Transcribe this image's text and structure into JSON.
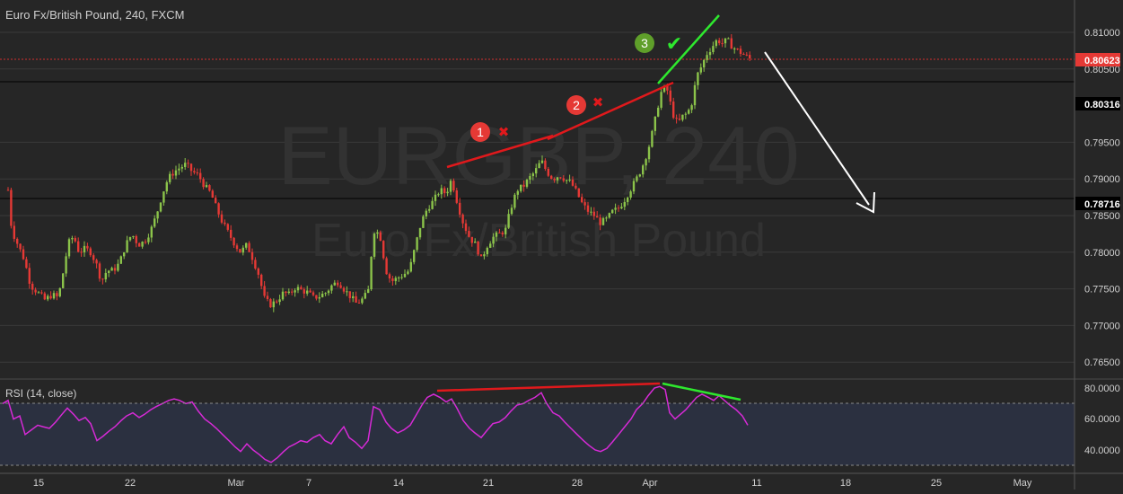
{
  "colors": {
    "background": "#262626",
    "rsi_band": "#2b3040",
    "grid": "#3a3a3a",
    "up": "#8bc34a",
    "down": "#e53935",
    "rsi_line": "#d62ad6",
    "price_line": "#d32f2f",
    "annotation_red": "#e0191c",
    "annotation_green": "#2ee82e",
    "arrow": "#ffffff",
    "text": "#d0d0d0",
    "watermark": "#323232"
  },
  "header": {
    "title": "Euro Fx/British Pound, 240, FXCM"
  },
  "watermark": {
    "symbol": "EURGBP, 240",
    "name": "Euro Fx/British Pound"
  },
  "price_axis": {
    "ticks": [
      "0.81000",
      "0.80500",
      "0.79500",
      "0.79000",
      "0.78500",
      "0.78000",
      "0.77500",
      "0.77000",
      "0.76500"
    ],
    "current_price_label": "0.80623",
    "line_labels": [
      "0.80316",
      "0.78716"
    ]
  },
  "rsi": {
    "title": "RSI (14, close)",
    "ticks": [
      "80.0000",
      "60.0000",
      "40.0000"
    ]
  },
  "time_axis": {
    "labels": [
      "15",
      "22",
      "Mar",
      "7",
      "14",
      "21",
      "28",
      "Apr",
      "11",
      "18",
      "25",
      "May"
    ]
  },
  "annotations": {
    "marker_1": "1",
    "marker_2": "2",
    "marker_3": "3",
    "cross_glyph": "✖",
    "check_glyph": "✔"
  },
  "chart_data": {
    "type": "candlestick",
    "title": "Euro Fx/British Pound, 240, FXCM",
    "ylim": [
      0.763,
      0.8125
    ],
    "horizontal_levels": [
      0.80316,
      0.78716
    ],
    "current_price": 0.80623,
    "price_path": [
      [
        9,
        0.7885
      ],
      [
        13,
        0.783
      ],
      [
        20,
        0.781
      ],
      [
        27,
        0.779
      ],
      [
        34,
        0.7755
      ],
      [
        42,
        0.7745
      ],
      [
        50,
        0.7735
      ],
      [
        58,
        0.7742
      ],
      [
        65,
        0.7738
      ],
      [
        70,
        0.777
      ],
      [
        76,
        0.7812
      ],
      [
        82,
        0.7822
      ],
      [
        88,
        0.78
      ],
      [
        95,
        0.7805
      ],
      [
        101,
        0.78
      ],
      [
        107,
        0.7785
      ],
      [
        113,
        0.776
      ],
      [
        119,
        0.7775
      ],
      [
        126,
        0.7775
      ],
      [
        133,
        0.7785
      ],
      [
        140,
        0.781
      ],
      [
        147,
        0.7825
      ],
      [
        154,
        0.781
      ],
      [
        161,
        0.7815
      ],
      [
        168,
        0.783
      ],
      [
        174,
        0.785
      ],
      [
        181,
        0.788
      ],
      [
        187,
        0.79
      ],
      [
        194,
        0.791
      ],
      [
        200,
        0.7915
      ],
      [
        207,
        0.792
      ],
      [
        214,
        0.791
      ],
      [
        221,
        0.7905
      ],
      [
        228,
        0.789
      ],
      [
        235,
        0.788
      ],
      [
        241,
        0.786
      ],
      [
        248,
        0.784
      ],
      [
        255,
        0.7825
      ],
      [
        262,
        0.781
      ],
      [
        268,
        0.78
      ],
      [
        275,
        0.781
      ],
      [
        282,
        0.779
      ],
      [
        288,
        0.777
      ],
      [
        295,
        0.7735
      ],
      [
        302,
        0.7728
      ],
      [
        309,
        0.7735
      ],
      [
        316,
        0.7745
      ],
      [
        322,
        0.7742
      ],
      [
        329,
        0.7752
      ],
      [
        336,
        0.7748
      ],
      [
        343,
        0.7745
      ],
      [
        349,
        0.7738
      ],
      [
        356,
        0.774
      ],
      [
        363,
        0.7745
      ],
      [
        370,
        0.7755
      ],
      [
        377,
        0.776
      ],
      [
        383,
        0.775
      ],
      [
        390,
        0.774
      ],
      [
        397,
        0.773
      ],
      [
        403,
        0.7735
      ],
      [
        410,
        0.7745
      ],
      [
        416,
        0.783
      ],
      [
        423,
        0.7825
      ],
      [
        430,
        0.7775
      ],
      [
        436,
        0.776
      ],
      [
        443,
        0.7765
      ],
      [
        450,
        0.777
      ],
      [
        456,
        0.7775
      ],
      [
        463,
        0.781
      ],
      [
        469,
        0.784
      ],
      [
        476,
        0.786
      ],
      [
        483,
        0.787
      ],
      [
        490,
        0.7885
      ],
      [
        497,
        0.788
      ],
      [
        503,
        0.79
      ],
      [
        510,
        0.7865
      ],
      [
        516,
        0.784
      ],
      [
        523,
        0.782
      ],
      [
        530,
        0.781
      ],
      [
        536,
        0.779
      ],
      [
        543,
        0.781
      ],
      [
        549,
        0.782
      ],
      [
        556,
        0.7825
      ],
      [
        563,
        0.783
      ],
      [
        569,
        0.786
      ],
      [
        576,
        0.7885
      ],
      [
        583,
        0.789
      ],
      [
        589,
        0.79
      ],
      [
        596,
        0.791
      ],
      [
        603,
        0.7925
      ],
      [
        609,
        0.791
      ],
      [
        616,
        0.79
      ],
      [
        623,
        0.7905
      ],
      [
        629,
        0.79
      ],
      [
        636,
        0.7895
      ],
      [
        643,
        0.788
      ],
      [
        649,
        0.7865
      ],
      [
        656,
        0.7855
      ],
      [
        662,
        0.785
      ],
      [
        669,
        0.784
      ],
      [
        676,
        0.7845
      ],
      [
        682,
        0.7855
      ],
      [
        689,
        0.786
      ],
      [
        695,
        0.787
      ],
      [
        702,
        0.7885
      ],
      [
        709,
        0.79
      ],
      [
        715,
        0.7915
      ],
      [
        722,
        0.794
      ],
      [
        728,
        0.797
      ],
      [
        733,
        0.8
      ],
      [
        738,
        0.8025
      ],
      [
        744,
        0.802
      ],
      [
        749,
        0.799
      ],
      [
        755,
        0.7975
      ],
      [
        760,
        0.7985
      ],
      [
        766,
        0.799
      ],
      [
        771,
        0.8005
      ],
      [
        776,
        0.804
      ],
      [
        782,
        0.8055
      ],
      [
        787,
        0.807
      ],
      [
        793,
        0.808
      ],
      [
        799,
        0.809
      ],
      [
        805,
        0.8085
      ],
      [
        810,
        0.809
      ],
      [
        816,
        0.808
      ],
      [
        822,
        0.8075
      ],
      [
        828,
        0.807
      ],
      [
        834,
        0.8065
      ],
      [
        838,
        0.8062
      ]
    ],
    "rsi_path": [
      [
        3,
        70
      ],
      [
        9,
        72
      ],
      [
        15,
        60
      ],
      [
        22,
        62
      ],
      [
        28,
        50
      ],
      [
        35,
        53
      ],
      [
        42,
        56
      ],
      [
        48,
        55
      ],
      [
        55,
        54
      ],
      [
        62,
        58
      ],
      [
        69,
        63
      ],
      [
        75,
        67
      ],
      [
        82,
        63
      ],
      [
        88,
        59
      ],
      [
        95,
        61
      ],
      [
        101,
        57
      ],
      [
        108,
        46
      ],
      [
        115,
        49
      ],
      [
        121,
        52
      ],
      [
        128,
        55
      ],
      [
        135,
        59
      ],
      [
        141,
        62
      ],
      [
        148,
        64
      ],
      [
        155,
        61
      ],
      [
        161,
        63
      ],
      [
        168,
        66
      ],
      [
        174,
        68
      ],
      [
        181,
        70
      ],
      [
        188,
        72
      ],
      [
        194,
        73
      ],
      [
        200,
        72
      ],
      [
        207,
        70
      ],
      [
        214,
        71
      ],
      [
        221,
        65
      ],
      [
        228,
        60
      ],
      [
        235,
        57
      ],
      [
        241,
        54
      ],
      [
        248,
        50
      ],
      [
        255,
        46
      ],
      [
        262,
        42
      ],
      [
        268,
        39
      ],
      [
        275,
        44
      ],
      [
        282,
        40
      ],
      [
        289,
        37
      ],
      [
        295,
        34
      ],
      [
        302,
        32
      ],
      [
        309,
        35
      ],
      [
        316,
        39
      ],
      [
        322,
        42
      ],
      [
        329,
        44
      ],
      [
        335,
        46
      ],
      [
        342,
        45
      ],
      [
        349,
        48
      ],
      [
        356,
        50
      ],
      [
        362,
        46
      ],
      [
        369,
        44
      ],
      [
        376,
        50
      ],
      [
        383,
        55
      ],
      [
        389,
        48
      ],
      [
        396,
        45
      ],
      [
        403,
        41
      ],
      [
        410,
        46
      ],
      [
        416,
        68
      ],
      [
        423,
        66
      ],
      [
        430,
        58
      ],
      [
        436,
        54
      ],
      [
        443,
        51
      ],
      [
        450,
        53
      ],
      [
        457,
        56
      ],
      [
        463,
        62
      ],
      [
        470,
        69
      ],
      [
        476,
        74
      ],
      [
        483,
        76
      ],
      [
        490,
        74
      ],
      [
        497,
        71
      ],
      [
        503,
        73
      ],
      [
        509,
        67
      ],
      [
        516,
        59
      ],
      [
        523,
        54
      ],
      [
        529,
        51
      ],
      [
        536,
        48
      ],
      [
        543,
        53
      ],
      [
        549,
        57
      ],
      [
        556,
        58
      ],
      [
        563,
        61
      ],
      [
        569,
        65
      ],
      [
        576,
        69
      ],
      [
        583,
        70
      ],
      [
        589,
        72
      ],
      [
        596,
        74
      ],
      [
        603,
        77
      ],
      [
        609,
        70
      ],
      [
        616,
        64
      ],
      [
        623,
        62
      ],
      [
        629,
        58
      ],
      [
        636,
        54
      ],
      [
        643,
        50
      ],
      [
        650,
        46
      ],
      [
        656,
        43
      ],
      [
        663,
        40
      ],
      [
        669,
        39
      ],
      [
        676,
        41
      ],
      [
        682,
        45
      ],
      [
        689,
        50
      ],
      [
        696,
        55
      ],
      [
        703,
        60
      ],
      [
        709,
        66
      ],
      [
        716,
        70
      ],
      [
        722,
        75
      ],
      [
        729,
        80
      ],
      [
        735,
        81
      ],
      [
        741,
        79
      ],
      [
        746,
        64
      ],
      [
        752,
        60
      ],
      [
        758,
        63
      ],
      [
        764,
        66
      ],
      [
        770,
        70
      ],
      [
        776,
        74
      ],
      [
        782,
        76
      ],
      [
        789,
        74
      ],
      [
        795,
        72
      ],
      [
        801,
        75
      ],
      [
        807,
        72
      ],
      [
        813,
        69
      ],
      [
        820,
        66
      ],
      [
        827,
        62
      ],
      [
        833,
        56
      ]
    ]
  }
}
